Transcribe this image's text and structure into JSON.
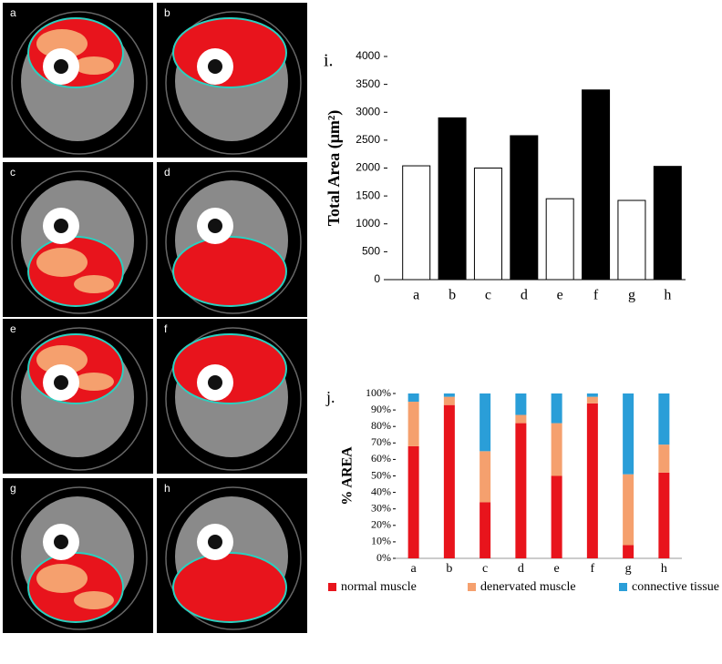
{
  "image_panels": [
    "a",
    "b",
    "c",
    "d",
    "e",
    "f",
    "g",
    "h"
  ],
  "chart_data": [
    {
      "type": "bar",
      "title": "i.",
      "y_label": "Total Area (μm²)",
      "categories": [
        "a",
        "b",
        "c",
        "d",
        "e",
        "f",
        "g",
        "h"
      ],
      "values": [
        2040,
        2900,
        2000,
        2580,
        1450,
        3400,
        1420,
        2030
      ],
      "colors": [
        "#ffffff",
        "#000000",
        "#ffffff",
        "#000000",
        "#ffffff",
        "#000000",
        "#ffffff",
        "#000000"
      ],
      "ylim": [
        0,
        4000
      ],
      "yticks": [
        0,
        500,
        1000,
        1500,
        2000,
        2500,
        3000,
        3500,
        4000
      ]
    },
    {
      "type": "stacked_bar",
      "title": "j.",
      "y_label": "% AREA",
      "categories": [
        "a",
        "b",
        "c",
        "d",
        "e",
        "f",
        "g",
        "h"
      ],
      "series": [
        {
          "name": "normal muscle",
          "color": "#e8141c",
          "values": [
            68,
            93,
            34,
            82,
            50,
            94,
            8,
            52
          ]
        },
        {
          "name": "denervated muscle",
          "color": "#f5a06e",
          "values": [
            27,
            5,
            31,
            5,
            32,
            4,
            43,
            17
          ]
        },
        {
          "name": "connective tissue",
          "color": "#2a9ed8",
          "values": [
            5,
            2,
            35,
            13,
            18,
            2,
            49,
            31
          ]
        }
      ],
      "ylim": [
        0,
        100
      ],
      "yticks": [
        {
          "value": 0,
          "label": "0%"
        },
        {
          "value": 10,
          "label": "10%"
        },
        {
          "value": 20,
          "label": "20%"
        },
        {
          "value": 30,
          "label": "30%"
        },
        {
          "value": 40,
          "label": "40%"
        },
        {
          "value": 50,
          "label": "50%"
        },
        {
          "value": 60,
          "label": "60%"
        },
        {
          "value": 70,
          "label": "70%"
        },
        {
          "value": 80,
          "label": "80%"
        },
        {
          "value": 90,
          "label": "90%"
        },
        {
          "value": 100,
          "label": "100%"
        }
      ],
      "legend": "bottom"
    }
  ]
}
